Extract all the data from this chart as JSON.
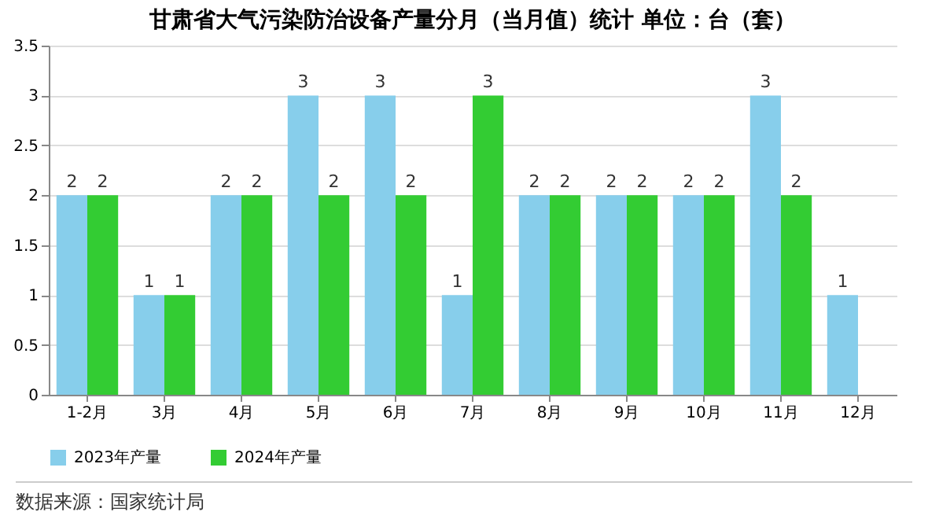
{
  "chart_data": {
    "type": "bar",
    "title": "甘肃省大气污染防治设备产量分月（当月值）统计 单位：台（套）",
    "categories": [
      "1-2月",
      "3月",
      "4月",
      "5月",
      "6月",
      "7月",
      "8月",
      "9月",
      "10月",
      "11月",
      "12月"
    ],
    "series": [
      {
        "name": "2023年产量",
        "color": "#87ceeb",
        "values": [
          2,
          1,
          2,
          3,
          3,
          1,
          2,
          2,
          2,
          3,
          1
        ]
      },
      {
        "name": "2024年产量",
        "color": "#33cc33",
        "values": [
          2,
          1,
          2,
          2,
          2,
          3,
          2,
          2,
          2,
          2,
          null
        ]
      }
    ],
    "ylim": [
      0,
      3.5
    ],
    "yticks": [
      0,
      0.5,
      1,
      1.5,
      2,
      2.5,
      3,
      3.5
    ],
    "grid": "y",
    "legend": "bottom",
    "data_labels": true,
    "annotations": [
      "数据来源：国家统计局"
    ]
  }
}
